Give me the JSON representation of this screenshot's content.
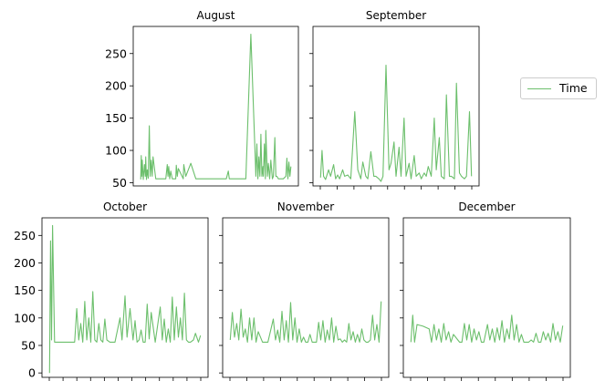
{
  "colors": {
    "series": "#6cbf6c",
    "axis": "#000000",
    "background": "#ffffff"
  },
  "legend": {
    "label": "Time",
    "placement": "right"
  },
  "chart_data": [
    {
      "type": "line",
      "title": "August",
      "xlabel": "",
      "ylabel": "",
      "ylim": [
        45,
        292
      ],
      "yticks": [
        50,
        100,
        150,
        200,
        250
      ],
      "xticks_count": 0,
      "x": [
        0.0,
        0.2,
        0.4,
        0.6,
        1.0,
        1.5,
        1.8,
        2.0,
        2.3,
        2.6,
        3.0,
        3.4,
        3.8,
        4.2,
        4.6,
        4.9,
        6.0,
        8.0,
        10.0,
        10.6,
        10.9,
        11.2,
        11.6,
        12.0,
        12.6,
        12.9,
        14.0,
        14.2,
        14.6,
        15.0,
        17.0,
        17.2,
        18.0,
        20.0,
        22.0,
        24.0,
        26.0,
        26.2,
        26.6,
        27.0,
        27.4,
        27.6,
        28.0,
        28.6,
        29.0,
        29.4,
        30.0,
        30.4,
        30.8,
        31.4,
        32.0,
        32.6,
        33.2,
        33.6,
        34.2,
        35.0,
        35.4,
        36.0,
        37.0,
        37.4,
        37.8,
        38.2,
        38.6,
        39.0,
        39.6,
        40.0,
        42.0,
        44.0,
        46.0,
        46.4,
        46.8,
        47.2,
        47.6,
        48.0,
        48.4,
        48.8,
        49.0,
        49.4,
        49.8,
        50.0,
        50.6,
        51.0,
        51.5,
        52.0,
        52.6,
        53.0,
        53.6,
        54.0,
        54.4,
        55.0,
        55.6,
        56.0,
        56.4,
        57.0,
        58.0,
        58.4,
        58.8,
        59.2,
        59.6,
        60.0
      ],
      "values": [
        55,
        92,
        60,
        85,
        55,
        78,
        60,
        90,
        55,
        70,
        57,
        138,
        60,
        85,
        60,
        90,
        56,
        56,
        56,
        78,
        60,
        75,
        56,
        68,
        56,
        56,
        56,
        77,
        60,
        72,
        56,
        78,
        60,
        80,
        56,
        56,
        56,
        56,
        56,
        56,
        56,
        56,
        56,
        56,
        56,
        56,
        56,
        56,
        56,
        56,
        56,
        56,
        56,
        56,
        56,
        68,
        56,
        56,
        56,
        56,
        56,
        56,
        56,
        56,
        56,
        56,
        56,
        280,
        60,
        110,
        56,
        90,
        60,
        125,
        60,
        75,
        60,
        110,
        56,
        131,
        60,
        80,
        56,
        85,
        56,
        60,
        120,
        60,
        60,
        56,
        56,
        56,
        56,
        56,
        60,
        88,
        56,
        82,
        60,
        75
      ]
    },
    {
      "type": "line",
      "title": "September",
      "ylim": [
        45,
        292
      ],
      "yticks": [
        50,
        100,
        150,
        200,
        250
      ],
      "xticks_count": 10,
      "x": [
        0.0,
        0.3,
        0.6,
        1.0,
        1.6,
        2.0,
        2.6,
        3.0,
        3.4,
        3.8,
        4.4,
        4.8,
        5.4,
        6.0,
        6.8,
        7.4,
        8.0,
        8.4,
        9.0,
        9.4,
        10.0,
        10.6,
        11.0,
        11.6,
        12.0,
        12.4,
        13.0,
        13.6,
        14.0,
        14.6,
        15.0,
        15.6,
        16.0,
        16.6,
        17.0,
        17.6,
        18.0,
        18.6,
        19.0,
        19.6,
        20.0,
        20.6,
        21.0,
        21.4,
        22.0,
        22.6,
        23.0,
        23.6,
        24.0,
        24.6,
        25.0,
        25.6,
        26.0,
        26.6,
        27.0,
        27.6,
        28.0,
        28.6,
        29.0,
        29.6,
        30.0
      ],
      "values": [
        58,
        100,
        60,
        55,
        70,
        60,
        78,
        56,
        62,
        56,
        70,
        60,
        62,
        56,
        160,
        70,
        56,
        82,
        60,
        56,
        98,
        60,
        60,
        56,
        52,
        60,
        232,
        70,
        80,
        113,
        60,
        105,
        60,
        150,
        60,
        80,
        56,
        92,
        60,
        65,
        56,
        65,
        60,
        75,
        60,
        150,
        70,
        120,
        60,
        56,
        186,
        60,
        60,
        56,
        204,
        65,
        60,
        56,
        60,
        160,
        60
      ]
    },
    {
      "type": "line",
      "title": "October",
      "ylim": [
        -8,
        282
      ],
      "yticks": [
        0,
        50,
        100,
        150,
        200,
        250
      ],
      "xticks_count": 12,
      "x": [
        0.0,
        0.2,
        0.4,
        0.6,
        1.0,
        1.2,
        2.0,
        3.0,
        4.0,
        5.0,
        5.4,
        5.8,
        6.2,
        6.6,
        7.0,
        7.4,
        7.8,
        8.2,
        8.6,
        9.0,
        9.4,
        9.8,
        10.2,
        10.6,
        11.0,
        11.4,
        12.0,
        13.0,
        14.0,
        14.4,
        15.0,
        15.4,
        16.0,
        16.6,
        17.0,
        17.4,
        17.8,
        18.2,
        18.6,
        19.0,
        19.4,
        19.8,
        20.2,
        21.0,
        22.0,
        22.4,
        22.8,
        23.2,
        23.6,
        24.0,
        24.4,
        24.8,
        25.2,
        25.6,
        26.0,
        26.4,
        26.8,
        27.2,
        27.6,
        28.0,
        28.6,
        29.0,
        29.6,
        30.0
      ],
      "values": [
        0,
        240,
        60,
        268,
        56,
        56,
        56,
        56,
        56,
        56,
        117,
        60,
        90,
        56,
        130,
        60,
        100,
        56,
        148,
        60,
        56,
        90,
        60,
        56,
        98,
        60,
        56,
        56,
        100,
        60,
        140,
        65,
        117,
        60,
        95,
        56,
        60,
        78,
        56,
        56,
        125,
        62,
        110,
        56,
        120,
        60,
        98,
        56,
        80,
        56,
        138,
        60,
        120,
        65,
        100,
        60,
        145,
        60,
        56,
        56,
        60,
        72,
        56,
        68
      ]
    },
    {
      "type": "line",
      "title": "November",
      "ylim": [
        -8,
        282
      ],
      "yticks": [
        0,
        50,
        100,
        150,
        200,
        250
      ],
      "xticks_count": 10,
      "x": [
        0.0,
        0.4,
        0.8,
        1.2,
        1.6,
        2.0,
        2.4,
        2.8,
        3.2,
        3.6,
        4.0,
        4.4,
        4.8,
        5.2,
        6.0,
        7.0,
        8.0,
        8.4,
        8.8,
        9.2,
        9.6,
        10.0,
        10.4,
        10.8,
        11.2,
        11.6,
        12.0,
        12.4,
        12.8,
        13.2,
        13.6,
        14.0,
        14.4,
        14.8,
        15.2,
        15.6,
        16.0,
        16.4,
        16.8,
        17.2,
        17.6,
        18.0,
        18.4,
        18.8,
        19.2,
        19.6,
        20.0,
        20.4,
        20.8,
        21.2,
        21.6,
        22.0,
        22.4,
        22.8,
        23.2,
        23.6,
        24.0,
        24.4,
        24.8,
        25.2,
        25.6,
        26.0,
        26.4,
        26.8,
        27.2,
        27.6,
        28.0
      ],
      "values": [
        60,
        110,
        65,
        90,
        60,
        116,
        65,
        80,
        56,
        100,
        60,
        100,
        56,
        75,
        56,
        56,
        98,
        60,
        78,
        56,
        112,
        60,
        95,
        56,
        128,
        60,
        100,
        56,
        80,
        56,
        65,
        56,
        56,
        70,
        56,
        56,
        56,
        92,
        60,
        95,
        56,
        78,
        60,
        100,
        56,
        85,
        60,
        62,
        56,
        60,
        56,
        90,
        60,
        75,
        56,
        70,
        56,
        80,
        60,
        56,
        56,
        60,
        105,
        60,
        88,
        56,
        130
      ]
    },
    {
      "type": "line",
      "title": "December",
      "ylim": [
        -8,
        282
      ],
      "yticks": [
        0,
        50,
        100,
        150,
        200,
        250
      ],
      "xticks_count": 10,
      "x": [
        0.0,
        0.3,
        0.6,
        1.0,
        2.0,
        3.0,
        3.4,
        3.8,
        4.2,
        4.6,
        5.0,
        5.4,
        5.8,
        6.2,
        6.6,
        7.0,
        8.0,
        8.4,
        8.8,
        9.2,
        9.6,
        10.0,
        10.4,
        10.8,
        11.2,
        11.6,
        12.0,
        12.6,
        13.0,
        13.4,
        13.8,
        14.2,
        14.6,
        15.0,
        15.4,
        15.8,
        16.2,
        16.6,
        17.0,
        17.4,
        17.8,
        18.2,
        18.6,
        19.0,
        19.4,
        19.8,
        20.2,
        20.6,
        21.0,
        21.4,
        21.8,
        22.2,
        22.6,
        23.0,
        23.4,
        23.8,
        24.2,
        24.6,
        25.0
      ],
      "values": [
        56,
        105,
        56,
        88,
        85,
        80,
        56,
        88,
        60,
        80,
        56,
        90,
        60,
        75,
        56,
        70,
        56,
        56,
        90,
        60,
        88,
        56,
        80,
        60,
        75,
        56,
        56,
        88,
        60,
        80,
        56,
        82,
        60,
        95,
        56,
        80,
        62,
        105,
        60,
        88,
        56,
        70,
        56,
        56,
        56,
        60,
        56,
        72,
        56,
        56,
        75,
        60,
        72,
        56,
        90,
        60,
        75,
        56,
        86
      ]
    }
  ]
}
